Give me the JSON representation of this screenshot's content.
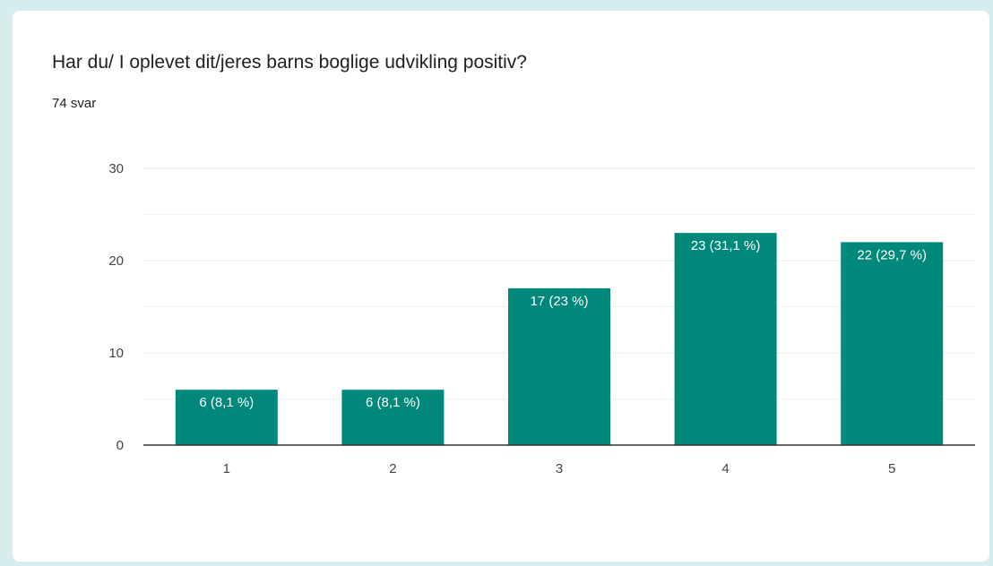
{
  "card": {
    "title": "Har du/ I oplevet dit/jeres barns boglige udvikling positiv?",
    "response_count": "74 svar"
  },
  "colors": {
    "bar": "#00897b",
    "grid": "#ebebeb",
    "axis": "#333333",
    "background": "#d7ecec"
  },
  "chart_data": {
    "type": "bar",
    "categories": [
      "1",
      "2",
      "3",
      "4",
      "5"
    ],
    "values": [
      6,
      6,
      17,
      23,
      22
    ],
    "data_labels": [
      "6 (8,1 %)",
      "6 (8,1 %)",
      "17 (23 %)",
      "23 (31,1 %)",
      "22 (29,7 %)"
    ],
    "title": "Har du/ I oplevet dit/jeres barns boglige udvikling positiv?",
    "subtitle": "74 svar",
    "xlabel": "",
    "ylabel": "",
    "ylim": [
      0,
      30
    ],
    "yticks": [
      0,
      10,
      20,
      30
    ],
    "minor_gridlines": [
      5,
      15,
      25
    ],
    "grid": true,
    "legend": "none"
  }
}
